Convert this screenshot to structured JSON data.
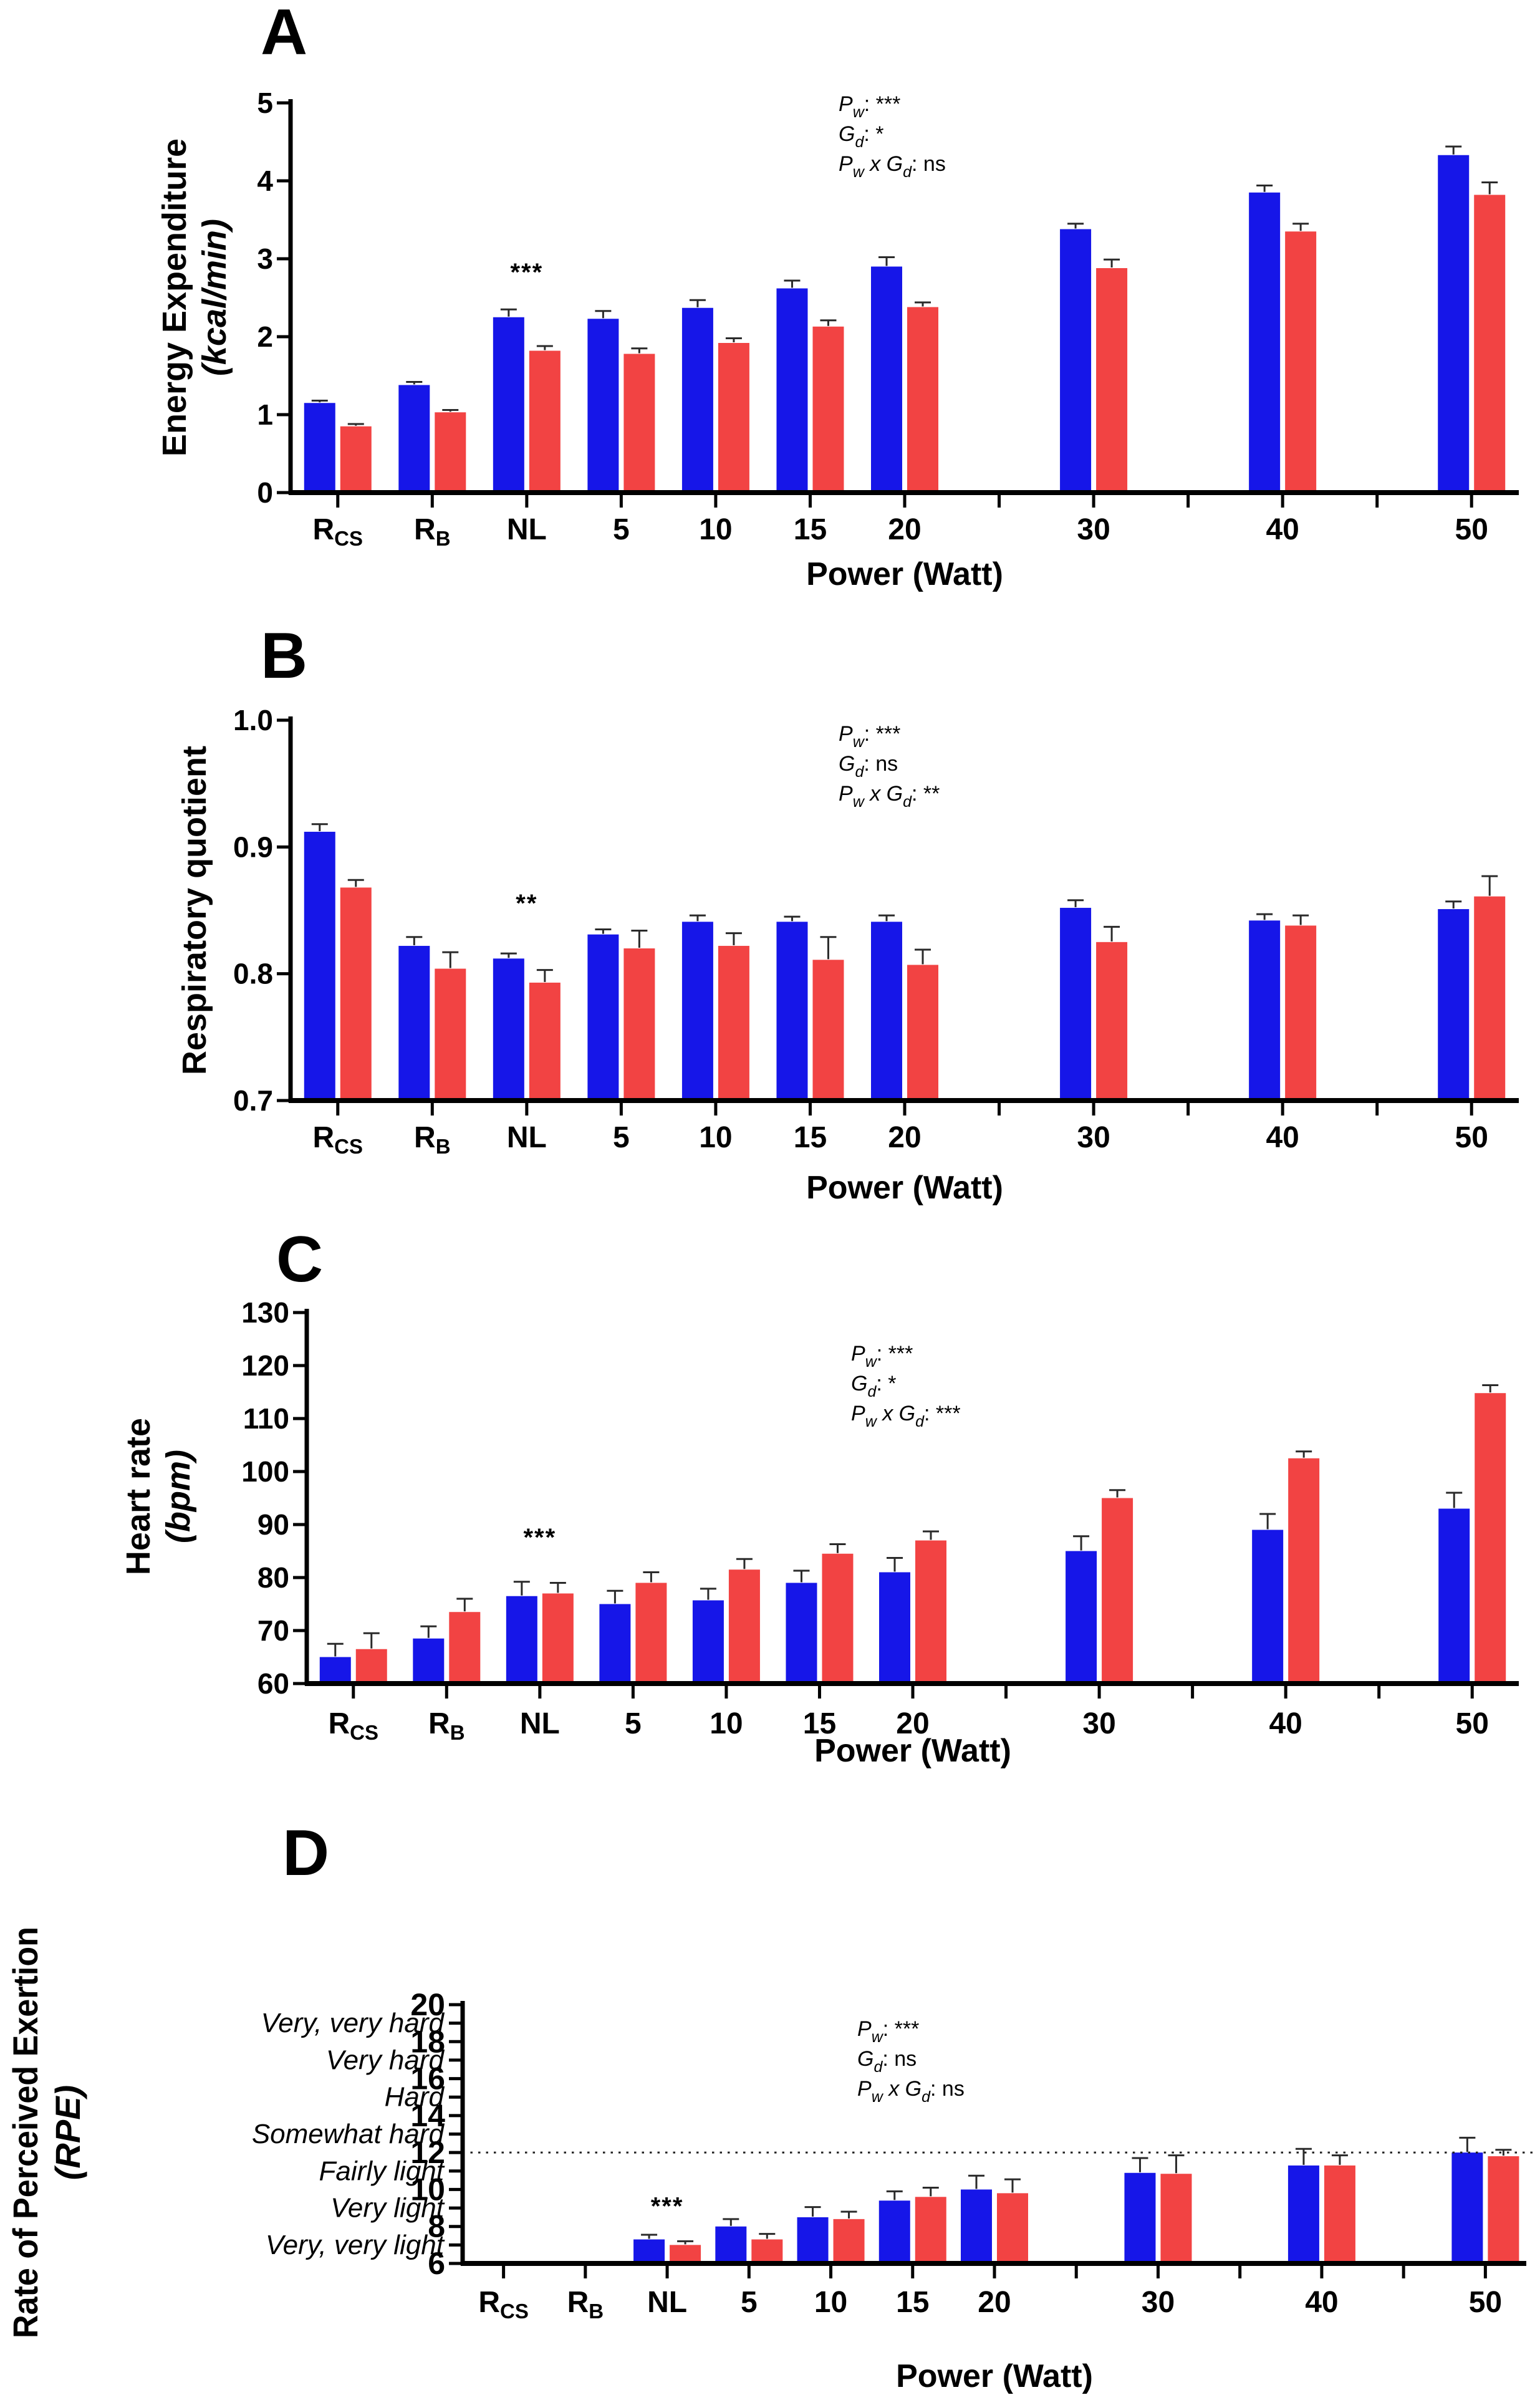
{
  "figure": {
    "x_axis_label": "Power (Watt)",
    "group_colors": {
      "blue": "#1616E8",
      "red": "#F24343"
    },
    "cat_labels": [
      {
        "main": "R",
        "sub": "CS"
      },
      {
        "main": "R",
        "sub": "B"
      },
      {
        "main": "NL",
        "sub": ""
      },
      {
        "main": "5",
        "sub": ""
      },
      {
        "main": "10",
        "sub": ""
      },
      {
        "main": "15",
        "sub": ""
      },
      {
        "main": "20",
        "sub": ""
      },
      {
        "main": "30",
        "sub": ""
      },
      {
        "main": "40",
        "sub": ""
      },
      {
        "main": "50",
        "sub": ""
      }
    ]
  },
  "chart_data": [
    {
      "type": "bar",
      "panel": "A",
      "ylabel": "Energy Expenditure",
      "ylabel2": "(kcal/min)",
      "xlabel": "Power (Watt)",
      "ylim": [
        0,
        5
      ],
      "yticks": [
        {
          "v": 0,
          "t": "0"
        },
        {
          "v": 1,
          "t": "1"
        },
        {
          "v": 2,
          "t": "2"
        },
        {
          "v": 3,
          "t": "3"
        },
        {
          "v": 4,
          "t": "4"
        },
        {
          "v": 5,
          "t": "5"
        }
      ],
      "categories": [
        "RCS",
        "RB",
        "NL",
        "5",
        "10",
        "15",
        "20",
        "30",
        "40",
        "50"
      ],
      "series": [
        {
          "name": "blue",
          "color": "#1616E8",
          "values": [
            1.15,
            1.38,
            2.25,
            2.23,
            2.37,
            2.62,
            2.9,
            3.38,
            3.85,
            4.33
          ],
          "errors": [
            0.03,
            0.04,
            0.1,
            0.1,
            0.1,
            0.1,
            0.12,
            0.07,
            0.09,
            0.11
          ]
        },
        {
          "name": "red",
          "color": "#F24343",
          "values": [
            0.85,
            1.03,
            1.82,
            1.78,
            1.92,
            2.13,
            2.38,
            2.88,
            3.35,
            3.82
          ],
          "errors": [
            0.03,
            0.03,
            0.06,
            0.07,
            0.06,
            0.08,
            0.06,
            0.11,
            0.1,
            0.16
          ]
        }
      ],
      "stats": [
        {
          "factor": "Pw",
          "sig": "***"
        },
        {
          "factor": "Gd",
          "sig": "*"
        },
        {
          "factor": "PwxGd",
          "sig": "ns"
        }
      ],
      "sig_marker": {
        "text": "***",
        "category": "NL",
        "y_value": 2.72
      }
    },
    {
      "type": "bar",
      "panel": "B",
      "ylabel": "Respiratory quotient",
      "ylabel2": "",
      "xlabel": "Power (Watt)",
      "ylim": [
        0.7,
        1.0
      ],
      "yticks": [
        {
          "v": 0.7,
          "t": "0.7"
        },
        {
          "v": 0.8,
          "t": "0.8"
        },
        {
          "v": 0.9,
          "t": "0.9"
        },
        {
          "v": 1.0,
          "t": "1.0"
        }
      ],
      "categories": [
        "RCS",
        "RB",
        "NL",
        "5",
        "10",
        "15",
        "20",
        "30",
        "40",
        "50"
      ],
      "series": [
        {
          "name": "blue",
          "color": "#1616E8",
          "values": [
            0.912,
            0.822,
            0.812,
            0.831,
            0.841,
            0.841,
            0.841,
            0.852,
            0.842,
            0.851
          ],
          "errors": [
            0.006,
            0.007,
            0.004,
            0.004,
            0.005,
            0.004,
            0.005,
            0.006,
            0.005,
            0.006
          ]
        },
        {
          "name": "red",
          "color": "#F24343",
          "values": [
            0.868,
            0.804,
            0.793,
            0.82,
            0.822,
            0.811,
            0.807,
            0.825,
            0.838,
            0.861
          ],
          "errors": [
            0.006,
            0.013,
            0.01,
            0.014,
            0.01,
            0.018,
            0.012,
            0.012,
            0.008,
            0.016
          ]
        }
      ],
      "stats": [
        {
          "factor": "Pw",
          "sig": "***"
        },
        {
          "factor": "Gd",
          "sig": "ns"
        },
        {
          "factor": "PwxGd",
          "sig": "**"
        }
      ],
      "sig_marker": {
        "text": "**",
        "category": "NL",
        "y_value": 0.849
      }
    },
    {
      "type": "bar",
      "panel": "C",
      "ylabel": "Heart rate",
      "ylabel2": "(bpm)",
      "xlabel": "Power (Watt)",
      "ylim": [
        60,
        130
      ],
      "yticks": [
        {
          "v": 60,
          "t": "60"
        },
        {
          "v": 70,
          "t": "70"
        },
        {
          "v": 80,
          "t": "80"
        },
        {
          "v": 90,
          "t": "90"
        },
        {
          "v": 100,
          "t": "100"
        },
        {
          "v": 110,
          "t": "110"
        },
        {
          "v": 120,
          "t": "120"
        },
        {
          "v": 130,
          "t": "130"
        }
      ],
      "categories": [
        "RCS",
        "RB",
        "NL",
        "5",
        "10",
        "15",
        "20",
        "30",
        "40",
        "50"
      ],
      "series": [
        {
          "name": "blue",
          "color": "#1616E8",
          "values": [
            65,
            68.5,
            76.5,
            75,
            75.7,
            79,
            81,
            85,
            89,
            93
          ],
          "errors": [
            2.5,
            2.3,
            2.7,
            2.5,
            2.2,
            2.3,
            2.7,
            2.8,
            3.0,
            3.0
          ]
        },
        {
          "name": "red",
          "color": "#F24343",
          "values": [
            66.5,
            73.5,
            77,
            79,
            81.5,
            84.5,
            87,
            95,
            102.5,
            114.8
          ],
          "errors": [
            3.0,
            2.5,
            2.0,
            2.0,
            2.0,
            1.8,
            1.7,
            1.5,
            1.3,
            1.5
          ]
        }
      ],
      "stats": [
        {
          "factor": "Pw",
          "sig": "***"
        },
        {
          "factor": "Gd",
          "sig": "*"
        },
        {
          "factor": "PwxGd",
          "sig": "***"
        }
      ],
      "sig_marker": {
        "text": "***",
        "category": "NL",
        "y_value": 86
      }
    },
    {
      "type": "bar",
      "panel": "D",
      "ylabel": "Rate of Perceived Exertion",
      "ylabel2": "(RPE)",
      "xlabel": "Power (Watt)",
      "ylim": [
        6,
        20
      ],
      "yticks": [
        {
          "v": 20,
          "t": "20",
          "k": "num"
        },
        {
          "v": 19,
          "t": "Very, very hard",
          "k": "word"
        },
        {
          "v": 18,
          "t": "18",
          "k": "num"
        },
        {
          "v": 17,
          "t": "Very hard",
          "k": "word"
        },
        {
          "v": 16,
          "t": "16",
          "k": "num"
        },
        {
          "v": 15,
          "t": "Hard",
          "k": "word"
        },
        {
          "v": 14,
          "t": "14",
          "k": "num"
        },
        {
          "v": 13,
          "t": "Somewhat hard",
          "k": "word"
        },
        {
          "v": 12,
          "t": "12",
          "k": "num"
        },
        {
          "v": 11,
          "t": "Fairly light",
          "k": "word"
        },
        {
          "v": 10,
          "t": "10",
          "k": "num"
        },
        {
          "v": 9,
          "t": "Very light",
          "k": "word"
        },
        {
          "v": 8,
          "t": "8",
          "k": "num"
        },
        {
          "v": 7,
          "t": "Very, very light",
          "k": "word"
        },
        {
          "v": 6,
          "t": "6",
          "k": "num"
        }
      ],
      "categories": [
        "RCS",
        "RB",
        "NL",
        "5",
        "10",
        "15",
        "20",
        "30",
        "40",
        "50"
      ],
      "series": [
        {
          "name": "blue",
          "color": "#1616E8",
          "values": [
            null,
            null,
            7.3,
            8.0,
            8.5,
            9.4,
            10.0,
            10.9,
            11.3,
            12.0
          ],
          "errors": [
            null,
            null,
            0.25,
            0.4,
            0.55,
            0.5,
            0.75,
            0.8,
            0.9,
            0.8
          ]
        },
        {
          "name": "red",
          "color": "#F24343",
          "values": [
            null,
            null,
            7.0,
            7.3,
            8.4,
            9.6,
            9.8,
            10.85,
            11.3,
            11.8
          ],
          "errors": [
            null,
            null,
            0.2,
            0.3,
            0.4,
            0.5,
            0.75,
            1.0,
            0.55,
            0.35
          ]
        }
      ],
      "stats": [
        {
          "factor": "Pw",
          "sig": "***"
        },
        {
          "factor": "Gd",
          "sig": "ns"
        },
        {
          "factor": "PwxGd",
          "sig": "ns"
        }
      ],
      "sig_marker": {
        "text": "***",
        "category": "NL",
        "y_value": 8.65
      },
      "reference_line": {
        "y_value": 12,
        "style": "dotted"
      }
    }
  ]
}
